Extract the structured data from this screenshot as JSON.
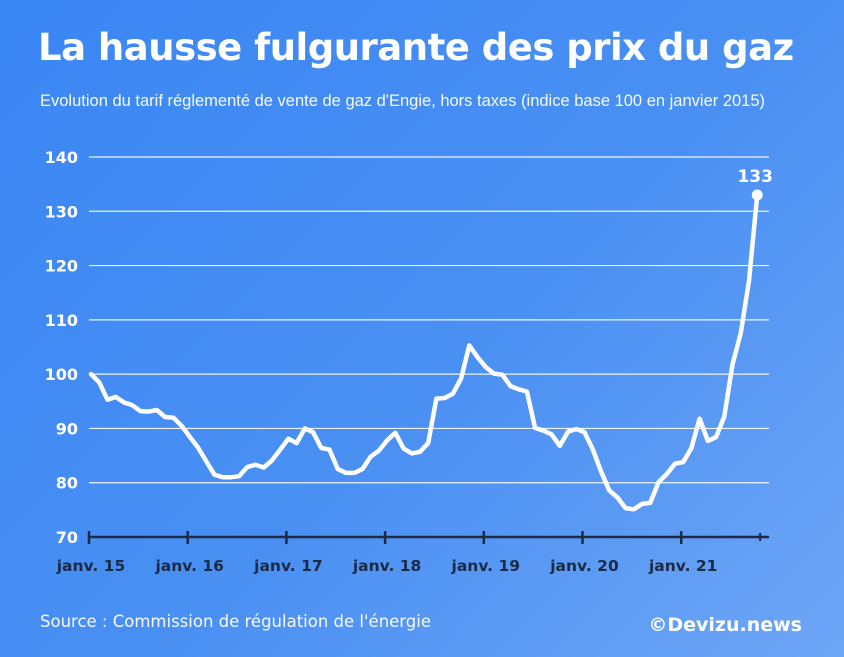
{
  "title": "La hausse fulgurante des prix du gaz",
  "subtitle": "Evolution du tarif réglementé de vente de gaz d'Engie, hors taxes (indice base 100 en janvier 2015)",
  "source": "Source : Commission de régulation de l'énergie",
  "brand": "©Devizu.news",
  "colors": {
    "background": "#4a90f3",
    "line": "#ffffff",
    "grid": "#ffffff"
  },
  "chart_data": {
    "type": "line",
    "title": "La hausse fulgurante des prix du gaz",
    "subtitle": "Evolution du tarif réglementé de vente de gaz d'Engie, hors taxes (indice base 100 en janvier 2015)",
    "xlabel": "",
    "ylabel": "",
    "ylim": [
      70,
      140
    ],
    "yticks": [
      70,
      80,
      90,
      100,
      110,
      120,
      130,
      140
    ],
    "grid": true,
    "x_tick_labels": [
      "janv. 15",
      "janv. 16",
      "janv. 17",
      "janv. 18",
      "janv. 19",
      "janv. 20",
      "janv. 21"
    ],
    "x_unit": "months since janv. 15",
    "annotation": {
      "label": "133",
      "value": 133
    },
    "series": [
      {
        "values": [
          100,
          98.5,
          95.3,
          95.8,
          94.8,
          94.3,
          93.2,
          93.1,
          93.4,
          92.1,
          92.0,
          90.5,
          88.5,
          86.5,
          84.0,
          81.5,
          81.0,
          81.0,
          81.2,
          82.9,
          83.3,
          82.8,
          84.1,
          86.1,
          88.1,
          87.3,
          90.0,
          89.3,
          86.4,
          86.1,
          82.5,
          81.8,
          81.8,
          82.5,
          84.8,
          85.9,
          87.8,
          89.2,
          86.3,
          85.4,
          85.7,
          87.3,
          95.5,
          95.6,
          96.4,
          99.2,
          105.3,
          103.1,
          101.3,
          100.1,
          99.9,
          97.8,
          97.2,
          96.8,
          90.1,
          89.6,
          88.9,
          86.8,
          89.4,
          89.9,
          89.3,
          86.2,
          82.1,
          78.6,
          77.3,
          75.3,
          75.1,
          76.1,
          76.3,
          80.1,
          81.6,
          83.5,
          83.8,
          86.4,
          91.8,
          87.7,
          88.4,
          92.2,
          101.8,
          107.6,
          117.2,
          133
        ]
      }
    ]
  }
}
